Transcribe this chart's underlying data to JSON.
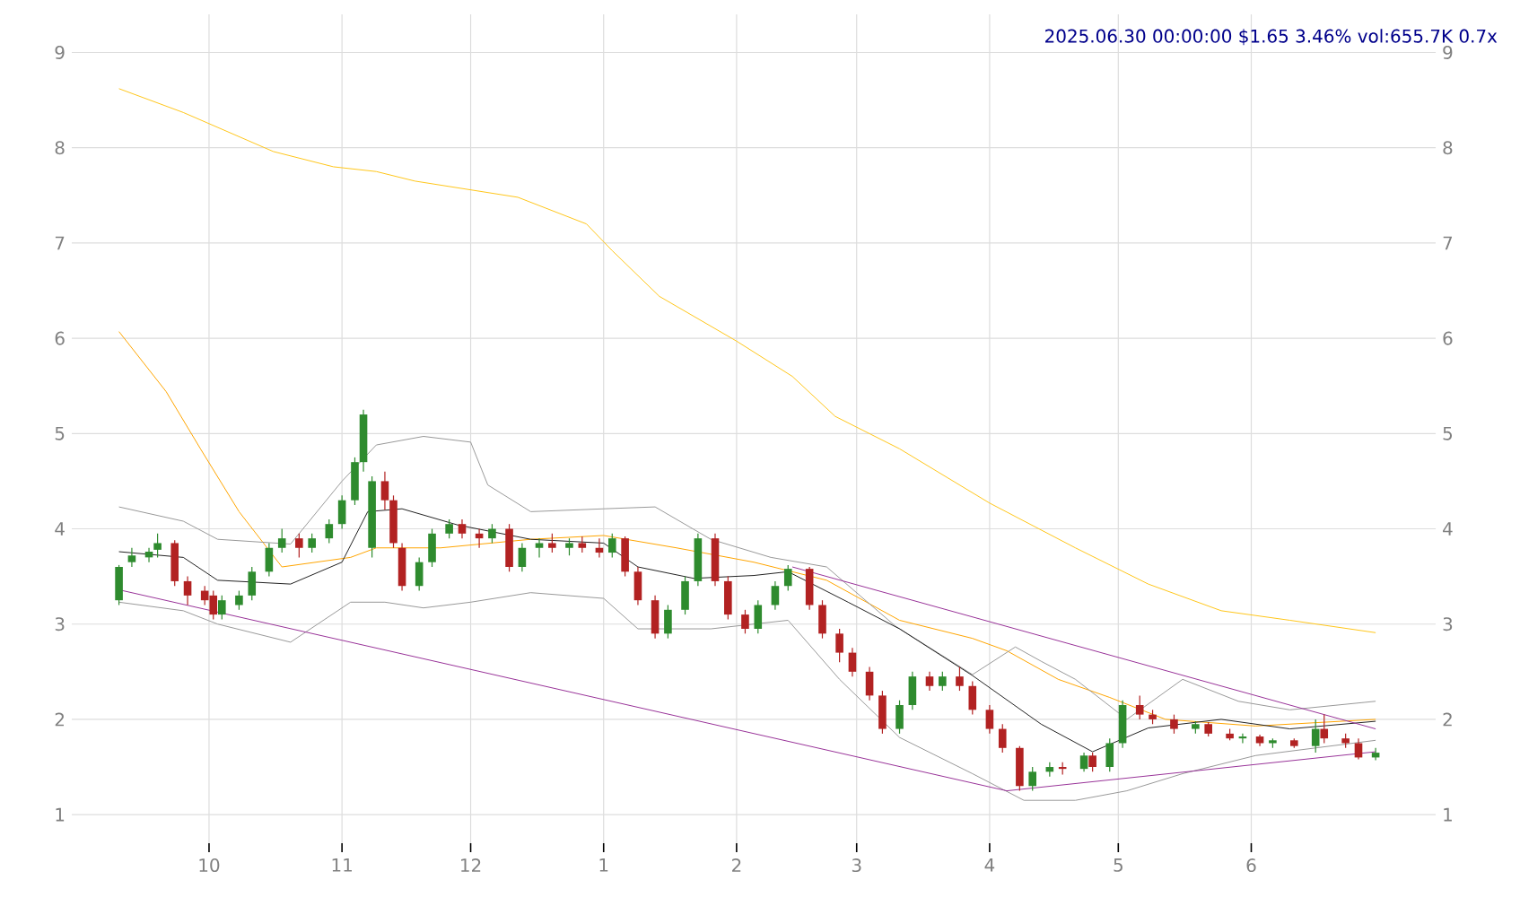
{
  "chart_data": {
    "type": "candlestick",
    "title": "2025.06.30 00:00:00 $1.65 3.46% vol:655.7K 0.7x",
    "xlim": [
      "2024-08-30",
      "2025-07-14"
    ],
    "ylim": [
      0.7,
      9.4
    ],
    "yticks": [
      1,
      2,
      3,
      4,
      5,
      6,
      7,
      8,
      9
    ],
    "y2lim": [
      0.7,
      9.4
    ],
    "y2ticks": [
      1,
      2,
      3,
      4,
      5,
      6,
      7,
      8,
      9
    ],
    "xticks": [
      {
        "value": "2024-10-01",
        "label": "10"
      },
      {
        "value": "2024-11-01",
        "label": "11"
      },
      {
        "value": "2024-12-01",
        "label": "12"
      },
      {
        "value": "2025-01-01",
        "label": "1"
      },
      {
        "value": "2025-02-01",
        "label": "2"
      },
      {
        "value": "2025-03-01",
        "label": "3"
      },
      {
        "value": "2025-04-01",
        "label": "4"
      },
      {
        "value": "2025-05-01",
        "label": "5"
      },
      {
        "value": "2025-06-01",
        "label": "6"
      }
    ],
    "grid": true,
    "x": [
      "2024-09-10",
      "2024-09-13",
      "2024-09-17",
      "2024-09-19",
      "2024-09-23",
      "2024-09-26",
      "2024-09-30",
      "2024-10-02",
      "2024-10-04",
      "2024-10-08",
      "2024-10-11",
      "2024-10-15",
      "2024-10-18",
      "2024-10-22",
      "2024-10-25",
      "2024-10-29",
      "2024-11-01",
      "2024-11-04",
      "2024-11-06",
      "2024-11-08",
      "2024-11-11",
      "2024-11-13",
      "2024-11-15",
      "2024-11-19",
      "2024-11-22",
      "2024-11-26",
      "2024-11-29",
      "2024-12-03",
      "2024-12-06",
      "2024-12-10",
      "2024-12-13",
      "2024-12-17",
      "2024-12-20",
      "2024-12-24",
      "2024-12-27",
      "2024-12-31",
      "2025-01-03",
      "2025-01-06",
      "2025-01-09",
      "2025-01-13",
      "2025-01-16",
      "2025-01-20",
      "2025-01-23",
      "2025-01-27",
      "2025-01-30",
      "2025-02-03",
      "2025-02-06",
      "2025-02-10",
      "2025-02-13",
      "2025-02-18",
      "2025-02-21",
      "2025-02-25",
      "2025-02-28",
      "2025-03-04",
      "2025-03-07",
      "2025-03-11",
      "2025-03-14",
      "2025-03-18",
      "2025-03-21",
      "2025-03-25",
      "2025-03-28",
      "2025-04-01",
      "2025-04-04",
      "2025-04-08",
      "2025-04-11",
      "2025-04-15",
      "2025-04-18",
      "2025-04-23",
      "2025-04-25",
      "2025-04-29",
      "2025-05-02",
      "2025-05-06",
      "2025-05-09",
      "2025-05-14",
      "2025-05-19",
      "2025-05-22",
      "2025-05-27",
      "2025-05-30",
      "2025-06-03",
      "2025-06-06",
      "2025-06-11",
      "2025-06-16",
      "2025-06-18",
      "2025-06-23",
      "2025-06-26",
      "2025-06-30"
    ],
    "ohlc": [
      [
        3.25,
        3.62,
        3.2,
        3.6
      ],
      [
        3.65,
        3.8,
        3.6,
        3.72
      ],
      [
        3.7,
        3.8,
        3.65,
        3.76
      ],
      [
        3.78,
        3.95,
        3.7,
        3.85
      ],
      [
        3.85,
        3.88,
        3.4,
        3.45
      ],
      [
        3.45,
        3.5,
        3.2,
        3.3
      ],
      [
        3.35,
        3.4,
        3.2,
        3.25
      ],
      [
        3.3,
        3.35,
        3.05,
        3.1
      ],
      [
        3.1,
        3.3,
        3.05,
        3.25
      ],
      [
        3.2,
        3.35,
        3.15,
        3.3
      ],
      [
        3.3,
        3.6,
        3.25,
        3.55
      ],
      [
        3.55,
        3.85,
        3.5,
        3.8
      ],
      [
        3.8,
        4.0,
        3.75,
        3.9
      ],
      [
        3.9,
        3.95,
        3.7,
        3.8
      ],
      [
        3.8,
        3.95,
        3.75,
        3.9
      ],
      [
        3.9,
        4.1,
        3.85,
        4.05
      ],
      [
        4.05,
        4.35,
        4.0,
        4.3
      ],
      [
        4.3,
        4.75,
        4.25,
        4.7
      ],
      [
        4.7,
        5.25,
        4.6,
        5.2
      ],
      [
        3.8,
        4.55,
        3.7,
        4.5
      ],
      [
        4.5,
        4.6,
        4.2,
        4.3
      ],
      [
        4.3,
        4.35,
        3.8,
        3.85
      ],
      [
        3.8,
        3.85,
        3.35,
        3.4
      ],
      [
        3.4,
        3.7,
        3.35,
        3.65
      ],
      [
        3.65,
        4.0,
        3.6,
        3.95
      ],
      [
        3.95,
        4.1,
        3.9,
        4.05
      ],
      [
        4.05,
        4.1,
        3.9,
        3.95
      ],
      [
        3.95,
        4.0,
        3.8,
        3.9
      ],
      [
        3.9,
        4.05,
        3.85,
        4.0
      ],
      [
        4.0,
        4.05,
        3.55,
        3.6
      ],
      [
        3.6,
        3.85,
        3.55,
        3.8
      ],
      [
        3.8,
        3.9,
        3.7,
        3.85
      ],
      [
        3.85,
        3.95,
        3.75,
        3.8
      ],
      [
        3.8,
        3.9,
        3.72,
        3.85
      ],
      [
        3.85,
        3.92,
        3.75,
        3.8
      ],
      [
        3.8,
        3.9,
        3.7,
        3.75
      ],
      [
        3.75,
        3.95,
        3.7,
        3.9
      ],
      [
        3.9,
        3.92,
        3.5,
        3.55
      ],
      [
        3.55,
        3.6,
        3.2,
        3.25
      ],
      [
        3.25,
        3.3,
        2.85,
        2.9
      ],
      [
        2.9,
        3.2,
        2.85,
        3.15
      ],
      [
        3.15,
        3.5,
        3.1,
        3.45
      ],
      [
        3.45,
        3.95,
        3.4,
        3.9
      ],
      [
        3.9,
        3.95,
        3.4,
        3.45
      ],
      [
        3.45,
        3.5,
        3.05,
        3.1
      ],
      [
        3.1,
        3.15,
        2.9,
        2.95
      ],
      [
        2.95,
        3.25,
        2.9,
        3.2
      ],
      [
        3.2,
        3.45,
        3.15,
        3.4
      ],
      [
        3.4,
        3.62,
        3.35,
        3.58
      ],
      [
        3.58,
        3.6,
        3.15,
        3.2
      ],
      [
        3.2,
        3.25,
        2.85,
        2.9
      ],
      [
        2.9,
        2.95,
        2.6,
        2.7
      ],
      [
        2.7,
        2.75,
        2.45,
        2.5
      ],
      [
        2.5,
        2.55,
        2.2,
        2.25
      ],
      [
        2.25,
        2.3,
        1.85,
        1.9
      ],
      [
        1.9,
        2.2,
        1.85,
        2.15
      ],
      [
        2.15,
        2.5,
        2.1,
        2.45
      ],
      [
        2.45,
        2.5,
        2.3,
        2.35
      ],
      [
        2.35,
        2.5,
        2.3,
        2.45
      ],
      [
        2.45,
        2.55,
        2.3,
        2.35
      ],
      [
        2.35,
        2.4,
        2.05,
        2.1
      ],
      [
        2.1,
        2.15,
        1.85,
        1.9
      ],
      [
        1.9,
        1.95,
        1.65,
        1.7
      ],
      [
        1.7,
        1.72,
        1.25,
        1.3
      ],
      [
        1.3,
        1.5,
        1.25,
        1.45
      ],
      [
        1.45,
        1.55,
        1.4,
        1.5
      ],
      [
        1.5,
        1.55,
        1.42,
        1.48
      ],
      [
        1.48,
        1.65,
        1.45,
        1.62
      ],
      [
        1.62,
        1.65,
        1.45,
        1.5
      ],
      [
        1.5,
        1.8,
        1.45,
        1.75
      ],
      [
        1.75,
        2.2,
        1.7,
        2.15
      ],
      [
        2.15,
        2.25,
        2.0,
        2.05
      ],
      [
        2.05,
        2.1,
        1.95,
        2.0
      ],
      [
        2.0,
        2.05,
        1.85,
        1.9
      ],
      [
        1.9,
        1.98,
        1.85,
        1.95
      ],
      [
        1.95,
        1.97,
        1.82,
        1.85
      ],
      [
        1.85,
        1.9,
        1.78,
        1.8
      ],
      [
        1.8,
        1.85,
        1.75,
        1.82
      ],
      [
        1.82,
        1.84,
        1.72,
        1.75
      ],
      [
        1.75,
        1.8,
        1.7,
        1.78
      ],
      [
        1.78,
        1.8,
        1.7,
        1.72
      ],
      [
        1.72,
        2.0,
        1.65,
        1.9
      ],
      [
        1.9,
        2.05,
        1.75,
        1.8
      ],
      [
        1.8,
        1.85,
        1.7,
        1.75
      ],
      [
        1.75,
        1.8,
        1.58,
        1.6
      ],
      [
        1.6,
        1.7,
        1.57,
        1.65
      ]
    ],
    "colors": [
      "#2e8b2e",
      "#2e8b2e",
      "#2e8b2e",
      "#2e8b2e",
      "#b22222",
      "#b22222",
      "#b22222",
      "#b22222",
      "#2e8b2e",
      "#2e8b2e",
      "#2e8b2e",
      "#2e8b2e",
      "#2e8b2e",
      "#b22222",
      "#2e8b2e",
      "#2e8b2e",
      "#2e8b2e",
      "#2e8b2e",
      "#2e8b2e",
      "#2e8b2e",
      "#b22222",
      "#b22222",
      "#b22222",
      "#2e8b2e",
      "#2e8b2e",
      "#2e8b2e",
      "#b22222",
      "#b22222",
      "#2e8b2e",
      "#b22222",
      "#2e8b2e",
      "#2e8b2e",
      "#b22222",
      "#2e8b2e",
      "#b22222",
      "#b22222",
      "#2e8b2e",
      "#b22222",
      "#b22222",
      "#b22222",
      "#2e8b2e",
      "#2e8b2e",
      "#2e8b2e",
      "#b22222",
      "#b22222",
      "#b22222",
      "#2e8b2e",
      "#2e8b2e",
      "#2e8b2e",
      "#b22222",
      "#b22222",
      "#b22222",
      "#b22222",
      "#b22222",
      "#b22222",
      "#2e8b2e",
      "#2e8b2e",
      "#b22222",
      "#2e8b2e",
      "#b22222",
      "#b22222",
      "#b22222",
      "#b22222",
      "#b22222",
      "#2e8b2e",
      "#2e8b2e",
      "#b22222",
      "#2e8b2e",
      "#b22222",
      "#2e8b2e",
      "#2e8b2e",
      "#b22222",
      "#b22222",
      "#b22222",
      "#2e8b2e",
      "#b22222",
      "#b22222",
      "#2e8b2e",
      "#b22222",
      "#2e8b2e",
      "#b22222",
      "#2e8b2e",
      "#b22222",
      "#b22222",
      "#b22222",
      "#2e8b2e"
    ],
    "series": [
      {
        "type": "line",
        "color": "#ffc61a",
        "x": [
          "2024-09-10",
          "2024-09-25",
          "2024-10-16",
          "2024-10-30",
          "2024-11-09",
          "2024-11-18",
          "2024-12-12",
          "2024-12-28",
          "2025-01-03",
          "2025-01-14",
          "2025-02-01",
          "2025-02-14",
          "2025-02-24",
          "2025-03-11",
          "2025-04-01",
          "2025-04-21",
          "2025-05-08",
          "2025-05-25",
          "2025-06-10",
          "2025-06-30"
        ],
        "values": [
          8.62,
          8.37,
          7.96,
          7.8,
          7.75,
          7.65,
          7.48,
          7.2,
          6.92,
          6.44,
          5.97,
          5.6,
          5.18,
          4.84,
          4.27,
          3.8,
          3.42,
          3.14,
          3.04,
          2.91
        ]
      },
      {
        "type": "line",
        "color": "#ffa500",
        "x": [
          "2024-09-10",
          "2024-09-21",
          "2024-09-29",
          "2024-10-08",
          "2024-10-18",
          "2024-11-03",
          "2024-11-09",
          "2024-11-24",
          "2024-12-15",
          "2025-01-01",
          "2025-01-18",
          "2025-02-05",
          "2025-02-22",
          "2025-03-11",
          "2025-03-28",
          "2025-04-05",
          "2025-04-17",
          "2025-04-29",
          "2025-05-12",
          "2025-06-02",
          "2025-06-30"
        ],
        "values": [
          6.07,
          5.44,
          4.84,
          4.18,
          3.6,
          3.7,
          3.8,
          3.8,
          3.89,
          3.93,
          3.8,
          3.65,
          3.46,
          3.04,
          2.85,
          2.72,
          2.42,
          2.23,
          2.0,
          1.93,
          2.0
        ]
      },
      {
        "type": "line",
        "color": "#999999",
        "x": [
          "2024-09-10",
          "2024-09-25",
          "2024-10-03",
          "2024-10-20",
          "2024-11-01",
          "2024-11-09",
          "2024-11-20",
          "2024-12-01",
          "2024-12-05",
          "2024-12-15",
          "2025-01-01",
          "2025-01-13",
          "2025-01-26",
          "2025-02-09",
          "2025-02-22",
          "2025-03-10",
          "2025-03-28",
          "2025-04-07",
          "2025-04-13",
          "2025-04-21",
          "2025-05-03",
          "2025-05-16",
          "2025-05-29",
          "2025-06-10",
          "2025-06-30"
        ],
        "values": [
          4.23,
          4.08,
          3.89,
          3.84,
          4.5,
          4.88,
          4.97,
          4.91,
          4.46,
          4.18,
          4.21,
          4.23,
          3.89,
          3.7,
          3.6,
          2.98,
          2.47,
          2.76,
          2.61,
          2.42,
          2.0,
          2.42,
          2.19,
          2.1,
          2.19
        ]
      },
      {
        "type": "line",
        "color": "#999999",
        "x": [
          "2024-09-10",
          "2024-09-25",
          "2024-10-03",
          "2024-10-20",
          "2024-11-03",
          "2024-11-11",
          "2024-11-20",
          "2024-12-01",
          "2024-12-15",
          "2025-01-01",
          "2025-01-09",
          "2025-01-26",
          "2025-02-13",
          "2025-02-25",
          "2025-03-11",
          "2025-03-28",
          "2025-04-09",
          "2025-04-21",
          "2025-05-03",
          "2025-05-16",
          "2025-06-02",
          "2025-06-30"
        ],
        "values": [
          3.23,
          3.14,
          3.0,
          2.81,
          3.23,
          3.23,
          3.17,
          3.23,
          3.33,
          3.27,
          2.95,
          2.95,
          3.04,
          2.42,
          1.81,
          1.43,
          1.15,
          1.15,
          1.25,
          1.43,
          1.62,
          1.78
        ]
      },
      {
        "type": "line",
        "color": "#222222",
        "x": [
          "2024-09-10",
          "2024-09-25",
          "2024-10-03",
          "2024-10-20",
          "2024-11-01",
          "2024-11-07",
          "2024-11-15",
          "2024-11-28",
          "2024-12-15",
          "2025-01-01",
          "2025-01-09",
          "2025-01-22",
          "2025-02-05",
          "2025-02-13",
          "2025-02-27",
          "2025-03-11",
          "2025-03-28",
          "2025-04-13",
          "2025-04-25",
          "2025-05-08",
          "2025-05-25",
          "2025-06-10",
          "2025-06-30"
        ],
        "values": [
          3.76,
          3.7,
          3.46,
          3.42,
          3.65,
          4.18,
          4.21,
          4.04,
          3.89,
          3.85,
          3.6,
          3.48,
          3.51,
          3.55,
          3.23,
          2.95,
          2.46,
          1.95,
          1.66,
          1.91,
          2.0,
          1.9,
          1.98
        ]
      },
      {
        "type": "line",
        "color": "#993399",
        "x": [
          "2024-09-10",
          "2025-04-05",
          "2025-06-30"
        ],
        "values": [
          3.36,
          1.25,
          1.66
        ]
      },
      {
        "type": "line",
        "color": "#993399",
        "x": [
          "2025-02-14",
          "2025-06-30"
        ],
        "values": [
          3.6,
          1.9
        ]
      }
    ]
  }
}
